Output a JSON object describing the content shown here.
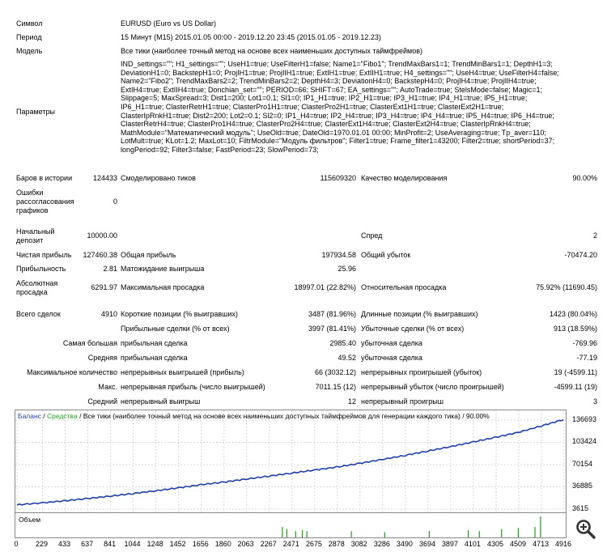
{
  "report": {
    "symbol_label": "Символ",
    "symbol_value": "EURUSD (Euro vs US Dollar)",
    "period_label": "Период",
    "period_value": "15 Минут (M15) 2015.01.05 00:00 - 2019.12.20 23:45 (2015.01.05 - 2019.12.23)",
    "model_label": "Модель",
    "model_value": "Все тики (наиболее точный метод на основе всех наименьших доступных таймфреймов)",
    "params_label": "Параметры",
    "params_lines": [
      "IND_settings=\"\"; H1_settings=\"\"; UseH1=true; UseFilterH1=false; Name1=\"Fibo1\"; TrendMaxBars1=1; TrendMinBars1=1; DepthH1=3;",
      "DeviationH1=0; BackstepH1=0; ProjIH1=true; ProjIIH1=true; ExtIH1=true; ExtIIH1=true; H4_settings=\"\"; UseH4=true; UseFilterH4=false;",
      "Name2=\"Fibo2\"; TrendMaxBars2=2; TrendMinBars2=2; DepthH4=3; DeviationH4=0; BackstepH4=0; ProjIH4=true; ProjIIH4=true;",
      "ExtIH4=true; ExtIIH4=true; Donchian_set=\"\"; PERIOD=66; SHIFT=67; EA_settings=\"\"; AutoTrade=true; StelsMode=false; Magic=1;",
      "Slippage=5; MaxSpread=3; Dist1=200; Lot1=0.1; Sl1=0; IP1_H1=true; IP2_H1=true; IP3_H1=true; IP4_H1=true; IP5_H1=true;",
      "IP6_H1=true; ClasterRetrH1=true; ClasterPro1H1=true; ClasterPro2H1=true; ClasterExt1H1=true; ClasterExt2H1=true;",
      "ClasterIpRnkH1=true; Dist2=200; Lot2=0.1; Sl2=0; IP1_H4=true; IP2_H4=true; IP3_H4=true; IP4_H4=true; IP5_H4=true; IP6_H4=true;",
      "ClasterRetrH4=true; ClasterPro1H4=true; ClasterPro2H4=true; ClasterExt1H4=true; ClasterExt2H4=true; ClasterIpRnkH4=true;",
      "MathModule=\"Математический модуль\"; UseOld=true; DateOld=1970.01.01 00:00; MinProfit=2; UseAveraging=true; Tp_aver=110;",
      "LotMult=true; KLot=1.2; MaxLot=10; FiltrModule=\"Модуль фильтров\"; Filter1=true; Frame_filter1=43200; Filter2=true; shortPeriod=37;",
      "longPeriod=92; Filter3=false; FastPeriod=23; SlowPeriod=73;"
    ],
    "bars_label": "Баров в истории",
    "bars_value": "124433",
    "ticks_label": "Смоделировано тиков",
    "ticks_value": "115609320",
    "quality_label": "Качество моделирования",
    "quality_value": "90.00%",
    "errors_label_1": "Ошибки",
    "errors_label_2": "рассогласования",
    "errors_label_3": "графиков",
    "errors_value": "0",
    "deposit_label_1": "Начальный",
    "deposit_label_2": "депозит",
    "deposit_value": "10000.00",
    "spread_label": "Спред",
    "spread_value": "2",
    "net_profit_label": "Чистая прибыль",
    "net_profit_value": "127460.38",
    "gross_profit_label": "Общая прибыль",
    "gross_profit_value": "197934.58",
    "gross_loss_label": "Общий убыток",
    "gross_loss_value": "-70474.20",
    "profit_factor_label": "Прибыльность",
    "profit_factor_value": "2.81",
    "expected_payoff_label": "Матожидание выигрыша",
    "expected_payoff_value": "25.96",
    "abs_dd_label_1": "Абсолютная",
    "abs_dd_label_2": "просадка",
    "abs_dd_value": "6291.97",
    "max_dd_label": "Максимальная просадка",
    "max_dd_value": "18997.01 (22.82%)",
    "rel_dd_label": "Относительная просадка",
    "rel_dd_value": "75.92% (11690.45)",
    "total_trades_label": "Всего сделок",
    "total_trades_value": "4910",
    "short_label": "Короткие позиции (% выигравших)",
    "short_value": "3487 (81.96%)",
    "long_label": "Длинные позиции (% выигравших)",
    "long_value": "1423 (80.04%)",
    "profit_trades_label": "Прибыльные сделки (% от всех)",
    "profit_trades_value": "3997 (81.41%)",
    "loss_trades_label": "Убыточные сделки (% от всех)",
    "loss_trades_value": "913 (18.59%)",
    "largest_label": "Самая большая",
    "largest_profit_label": "прибыльная сделка",
    "largest_profit_value": "2985.40",
    "largest_loss_label": "убыточная сделка",
    "largest_loss_value": "-769.96",
    "average_label": "Средняя",
    "average_profit_label": "прибыльная сделка",
    "average_profit_value": "49.52",
    "average_loss_label": "убыточная сделка",
    "average_loss_value": "-77.19",
    "max_count_label": "Максимальное количество",
    "consec_wins_label": "непрерывных выигрышей (прибыль)",
    "consec_wins_value": "66 (3032.12)",
    "consec_losses_label": "непрерывных проигрышей (убыток)",
    "consec_losses_value": "19 (-4599.11)",
    "max_label": "Макс.",
    "consec_profit_label": "непрерывная прибыль (число выигрышей)",
    "consec_profit_value": "7011.15 (12)",
    "consec_loss_label": "непрерывный убыток (число проигрышей)",
    "consec_loss_value": "-4599.11 (19)",
    "avg_label": "Средний",
    "avg_wins_label": "непрерывный выигрыш",
    "avg_wins_value": "12",
    "avg_losses_label": "непрерывный проигрыш",
    "avg_losses_value": "3"
  },
  "chart_legend": {
    "balance": "Баланс",
    "sep1": " / ",
    "equity": "Средства",
    "rest": " / Все тики (наиболее точный метод на основе всех наименьших доступных таймфреймов для генерации каждого тика) / 90.00%"
  },
  "volume_label": "Объем",
  "colors": {
    "balance": "#1f3fa8",
    "equity": "#1ea01e",
    "volume": "#1ea01e"
  },
  "icons": [
    "zoom-in-icon"
  ],
  "chart_data": {
    "type": "line",
    "title": "Баланс / Средства / Все тики (наиболее точный метод на основе всех наименьших доступных таймфреймов для генерации каждого тика) / 90.00%",
    "y_ticks": [
      "136693",
      "103424",
      "70154",
      "36885",
      "3615"
    ],
    "ylim": [
      3615,
      136693
    ],
    "x_ticks": [
      "0",
      "229",
      "433",
      "637",
      "841",
      "1044",
      "1248",
      "1452",
      "1656",
      "1860",
      "2063",
      "2267",
      "2471",
      "2675",
      "2878",
      "3082",
      "3286",
      "3490",
      "3694",
      "3897",
      "4101",
      "4305",
      "4509",
      "4713",
      "4916"
    ],
    "xlim": [
      0,
      4916
    ],
    "series": [
      {
        "name": "Баланс",
        "x": [
          0,
          229,
          433,
          637,
          841,
          1044,
          1248,
          1452,
          1656,
          1860,
          2063,
          2267,
          2471,
          2675,
          2878,
          3082,
          3286,
          3490,
          3694,
          3897,
          4101,
          4305,
          4509,
          4713,
          4910
        ],
        "values": [
          10000,
          13000,
          16000,
          19500,
          23000,
          27000,
          31000,
          35500,
          40000,
          44000,
          48500,
          53000,
          57500,
          62000,
          66500,
          72000,
          78000,
          84000,
          90500,
          97000,
          104000,
          111000,
          118500,
          128000,
          137460
        ]
      }
    ],
    "volume": {
      "name": "Объем",
      "x": [
        2380,
        2420,
        2500,
        2560,
        2600,
        3000,
        3300,
        3700,
        4050,
        4150,
        4350,
        4500,
        4650,
        4700
      ],
      "values": [
        0.5,
        0.4,
        0.3,
        0.35,
        0.3,
        0.3,
        0.25,
        0.3,
        0.35,
        0.3,
        0.4,
        0.45,
        0.5,
        1.0
      ]
    }
  }
}
